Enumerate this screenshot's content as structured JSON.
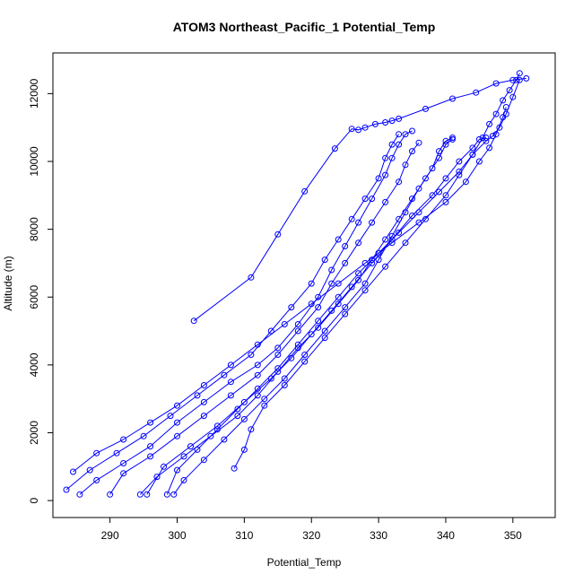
{
  "chart_data": {
    "type": "line",
    "title": "ATOM3 Northeast_Pacific_1 Potential_Temp",
    "xlabel": "Potential_Temp",
    "ylabel": "Altitude (m)",
    "xlim": [
      281.5,
      356.3
    ],
    "ylim": [
      -500,
      13200
    ],
    "xticks": [
      290,
      300,
      310,
      320,
      330,
      340,
      350
    ],
    "yticks": [
      0,
      2000,
      4000,
      6000,
      8000,
      10000,
      12000
    ],
    "grid": false,
    "legend": "none",
    "series_color": "#0000ff",
    "markers": "open-circle",
    "series": [
      {
        "points": [
          [
            302.5,
            5300
          ],
          [
            311,
            6580
          ],
          [
            315,
            7850
          ],
          [
            319,
            9120
          ],
          [
            323.5,
            10380
          ],
          [
            326,
            10960
          ],
          [
            327,
            10930
          ],
          [
            328,
            11000
          ],
          [
            329.5,
            11100
          ],
          [
            331,
            11150
          ],
          [
            332,
            11200
          ],
          [
            333,
            11260
          ],
          [
            337,
            11550
          ],
          [
            341,
            11850
          ],
          [
            344.5,
            12030
          ],
          [
            347.5,
            12300
          ],
          [
            350,
            12400
          ],
          [
            352,
            12450
          ]
        ]
      },
      {
        "points": [
          [
            285.5,
            180
          ],
          [
            288,
            600
          ],
          [
            292,
            1100
          ],
          [
            296,
            1600
          ],
          [
            300,
            2300
          ],
          [
            304,
            2900
          ],
          [
            308,
            3500
          ],
          [
            312,
            4000
          ],
          [
            315,
            4500
          ],
          [
            318,
            5200
          ],
          [
            321,
            6000
          ],
          [
            323,
            6800
          ],
          [
            325,
            7500
          ],
          [
            327,
            8200
          ],
          [
            329,
            8900
          ],
          [
            331,
            9600
          ],
          [
            332,
            10100
          ],
          [
            333,
            10500
          ],
          [
            334,
            10800
          ],
          [
            335,
            10900
          ]
        ]
      },
      {
        "points": [
          [
            283.5,
            320
          ],
          [
            287,
            900
          ],
          [
            291,
            1400
          ],
          [
            295,
            1900
          ],
          [
            299,
            2500
          ],
          [
            303,
            3100
          ],
          [
            307,
            3700
          ],
          [
            311,
            4300
          ],
          [
            314,
            5000
          ],
          [
            317,
            5700
          ],
          [
            320,
            6400
          ],
          [
            322,
            7100
          ],
          [
            324,
            7700
          ],
          [
            326,
            8300
          ],
          [
            328,
            8900
          ],
          [
            330,
            9500
          ],
          [
            331,
            10100
          ],
          [
            332,
            10500
          ],
          [
            333,
            10800
          ]
        ]
      },
      {
        "points": [
          [
            294.5,
            180
          ],
          [
            297,
            700
          ],
          [
            301,
            1300
          ],
          [
            305,
            1900
          ],
          [
            309,
            2500
          ],
          [
            312,
            3100
          ],
          [
            315,
            3800
          ],
          [
            318,
            4500
          ],
          [
            321,
            5100
          ],
          [
            324,
            5800
          ],
          [
            327,
            6500
          ],
          [
            329,
            7100
          ],
          [
            331,
            7700
          ],
          [
            333,
            8300
          ],
          [
            335,
            8900
          ],
          [
            337,
            9500
          ],
          [
            339,
            10100
          ],
          [
            340,
            10500
          ],
          [
            341,
            10650
          ]
        ]
      },
      {
        "points": [
          [
            298.5,
            180
          ],
          [
            300,
            900
          ],
          [
            303,
            1500
          ],
          [
            306,
            2100
          ],
          [
            309,
            2700
          ],
          [
            312,
            3300
          ],
          [
            315,
            3900
          ],
          [
            318,
            4600
          ],
          [
            321,
            5300
          ],
          [
            324,
            6000
          ],
          [
            327,
            6700
          ],
          [
            330,
            7300
          ],
          [
            333,
            7900
          ],
          [
            336,
            8500
          ],
          [
            339,
            9100
          ],
          [
            342,
            9700
          ],
          [
            344,
            10200
          ],
          [
            346,
            10600
          ],
          [
            347,
            10750
          ],
          [
            348,
            11000
          ],
          [
            349,
            11400
          ],
          [
            350,
            11900
          ],
          [
            351,
            12400
          ]
        ]
      },
      {
        "points": [
          [
            290,
            180
          ],
          [
            292,
            800
          ],
          [
            296,
            1300
          ],
          [
            300,
            1900
          ],
          [
            304,
            2500
          ],
          [
            308,
            3100
          ],
          [
            312,
            3700
          ],
          [
            315,
            4300
          ],
          [
            318,
            5000
          ],
          [
            321,
            5700
          ],
          [
            323,
            6400
          ],
          [
            325,
            7000
          ],
          [
            327,
            7600
          ],
          [
            329,
            8200
          ],
          [
            331,
            8800
          ],
          [
            333,
            9400
          ],
          [
            334,
            9900
          ],
          [
            335,
            10300
          ],
          [
            336,
            10550
          ]
        ]
      },
      {
        "points": [
          [
            295.5,
            180
          ],
          [
            298,
            1000
          ],
          [
            302,
            1600
          ],
          [
            306,
            2200
          ],
          [
            310,
            2900
          ],
          [
            314,
            3600
          ],
          [
            317,
            4200
          ],
          [
            320,
            4900
          ],
          [
            323,
            5600
          ],
          [
            326,
            6300
          ],
          [
            329,
            7000
          ],
          [
            332,
            7700
          ],
          [
            335,
            8400
          ],
          [
            338,
            9000
          ],
          [
            340,
            9500
          ],
          [
            342,
            10000
          ],
          [
            344,
            10400
          ],
          [
            345,
            10650
          ],
          [
            346,
            10700
          ]
        ]
      },
      {
        "points": [
          [
            308.5,
            950
          ],
          [
            310,
            1500
          ],
          [
            311,
            2100
          ],
          [
            313,
            2800
          ],
          [
            316,
            3400
          ],
          [
            319,
            4100
          ],
          [
            322,
            4800
          ],
          [
            325,
            5500
          ],
          [
            328,
            6200
          ],
          [
            331,
            6900
          ],
          [
            334,
            7600
          ],
          [
            337,
            8300
          ],
          [
            340,
            9000
          ],
          [
            342,
            9600
          ],
          [
            344,
            10200
          ],
          [
            345.5,
            10700
          ],
          [
            346.5,
            11100
          ],
          [
            347.5,
            11400
          ],
          [
            348.5,
            11800
          ],
          [
            349.5,
            12100
          ],
          [
            350.5,
            12400
          ],
          [
            351,
            12600
          ]
        ]
      },
      {
        "points": [
          [
            284.5,
            850
          ],
          [
            288,
            1400
          ],
          [
            292,
            1800
          ],
          [
            296,
            2300
          ],
          [
            300,
            2800
          ],
          [
            304,
            3400
          ],
          [
            308,
            4000
          ],
          [
            312,
            4600
          ],
          [
            316,
            5200
          ],
          [
            320,
            5800
          ],
          [
            324,
            6400
          ],
          [
            328,
            7000
          ],
          [
            332,
            7600
          ],
          [
            336,
            8200
          ],
          [
            340,
            8800
          ],
          [
            343,
            9400
          ],
          [
            345,
            10000
          ],
          [
            346.5,
            10400
          ],
          [
            347.5,
            10800
          ],
          [
            348.5,
            11300
          ],
          [
            349,
            11600
          ]
        ]
      },
      {
        "points": [
          [
            299.5,
            180
          ],
          [
            301,
            600
          ],
          [
            304,
            1200
          ],
          [
            307,
            1800
          ],
          [
            310,
            2400
          ],
          [
            313,
            3000
          ],
          [
            316,
            3600
          ],
          [
            319,
            4300
          ],
          [
            322,
            5000
          ],
          [
            325,
            5700
          ],
          [
            328,
            6400
          ],
          [
            330,
            7100
          ],
          [
            332,
            7800
          ],
          [
            334,
            8500
          ],
          [
            336,
            9200
          ],
          [
            338,
            9800
          ],
          [
            339,
            10300
          ],
          [
            340,
            10600
          ],
          [
            341,
            10700
          ]
        ]
      }
    ]
  }
}
